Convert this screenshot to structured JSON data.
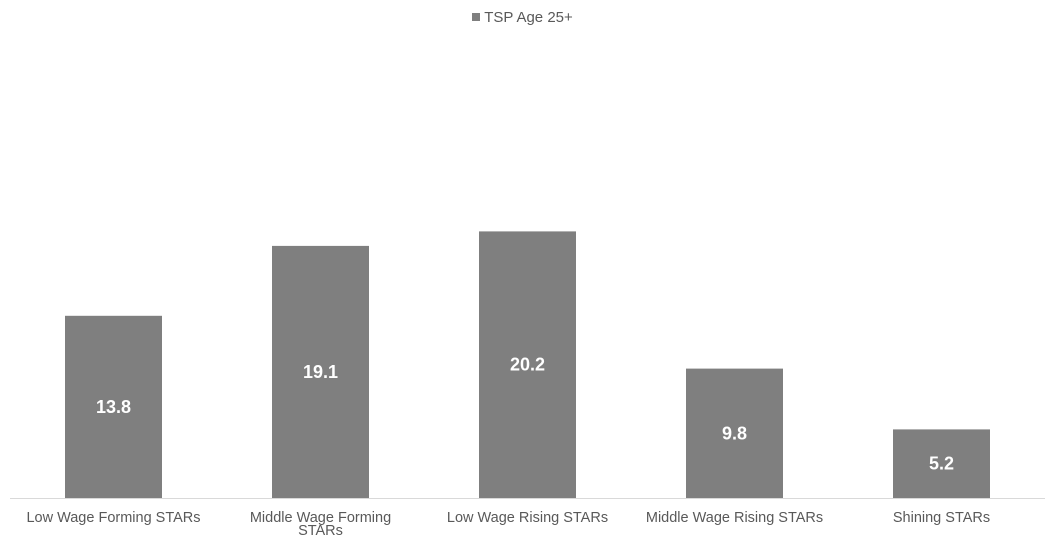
{
  "chart_data": {
    "type": "bar",
    "categories": [
      "Low Wage Forming STARs",
      "Middle Wage Forming STARs",
      "Low Wage Rising STARs",
      "Middle Wage Rising STARs",
      "Shining STARs"
    ],
    "series": [
      {
        "name": "TSP Age 25+",
        "values": [
          13.8,
          19.1,
          20.2,
          9.8,
          5.2
        ]
      }
    ],
    "ylim": [
      0,
      27.5
    ],
    "grid": false,
    "legend_position": "top-center",
    "data_labels": true,
    "colors": {
      "bar": "#7f7f7f",
      "data_label": "#ffffff",
      "axis_line": "#d9d9d9",
      "text": "#595959"
    }
  }
}
